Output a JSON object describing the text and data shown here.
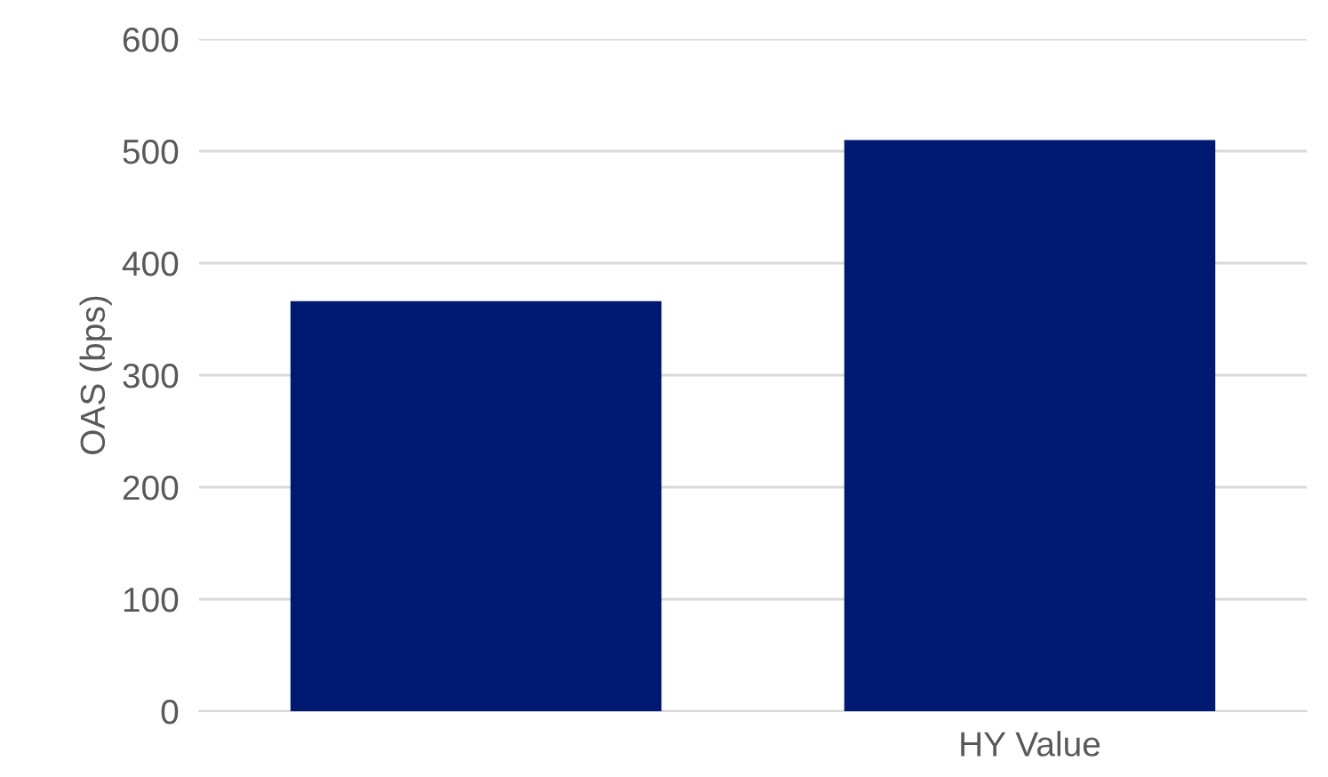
{
  "chart_data": {
    "type": "bar",
    "ylabel": "OAS (bps)",
    "categories": [
      null,
      "HY Value"
    ],
    "values": [
      366,
      510
    ],
    "color": "#001a72",
    "ylim": [
      0,
      600
    ],
    "yticks": [
      0,
      100,
      200,
      300,
      400,
      500,
      600
    ],
    "grid": "y"
  }
}
